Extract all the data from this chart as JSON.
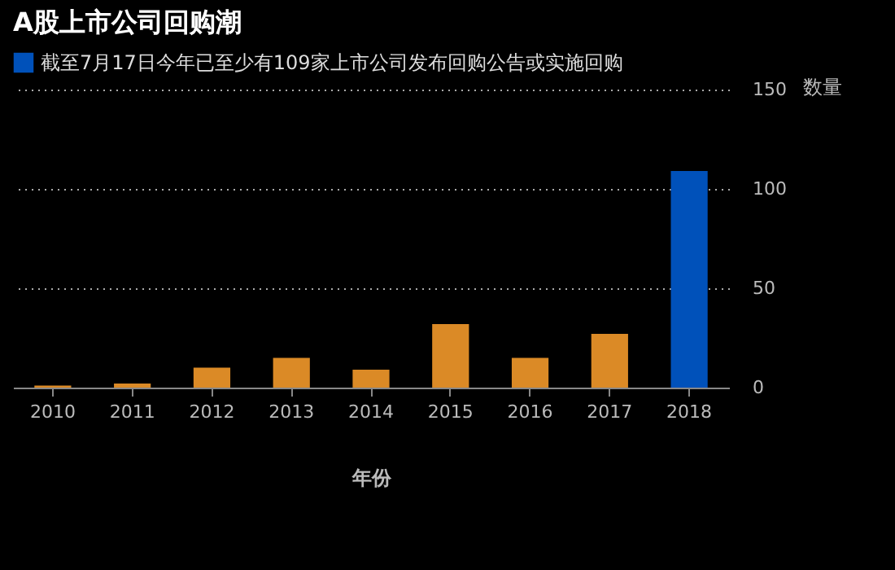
{
  "chart_data": {
    "type": "bar",
    "title": "A股上市公司回购潮",
    "xlabel": "年份",
    "ylabel": "数量",
    "categories": [
      "2010",
      "2011",
      "2012",
      "2013",
      "2014",
      "2015",
      "2016",
      "2017",
      "2018"
    ],
    "series": [
      {
        "color": "#db8a26",
        "values": [
          1,
          2,
          10,
          15,
          9,
          32,
          15,
          27,
          null
        ]
      },
      {
        "name": "截至7月17日今年已至少有109家上市公司发布回购公告或实施回购",
        "color": "#0051ba",
        "values": [
          null,
          null,
          null,
          null,
          null,
          null,
          null,
          null,
          109
        ]
      }
    ],
    "ylim": [
      0,
      150
    ],
    "yticks": [
      0,
      50,
      100,
      150
    ],
    "grid": "y",
    "legend": "top left"
  }
}
